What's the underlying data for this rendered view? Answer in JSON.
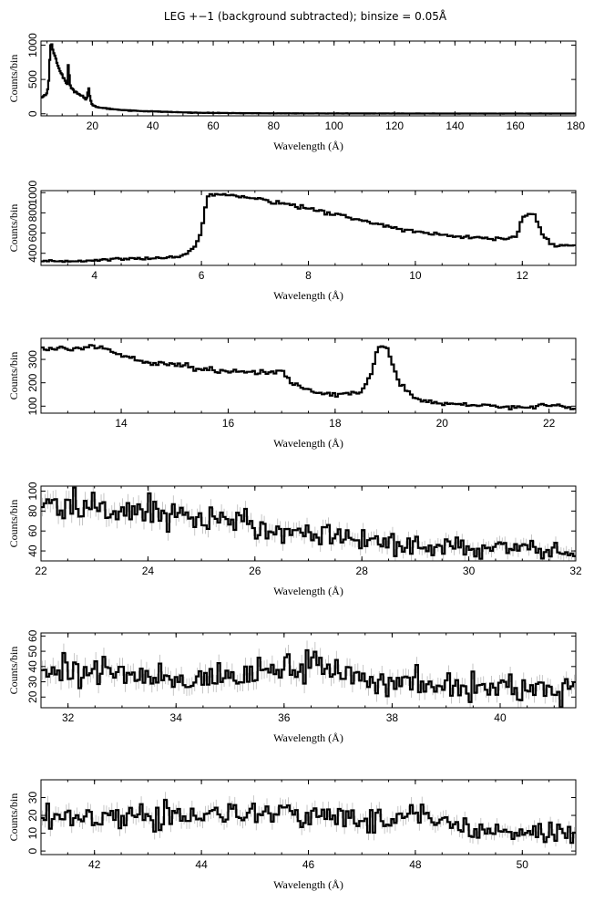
{
  "figure": {
    "title": "LEG +−1 (background subtracted); binsize = 0.05Å",
    "colors": {
      "line": "#000000",
      "error_bars": "#b8b8b8",
      "background": "#ffffff"
    }
  },
  "chart_data": [
    {
      "type": "line",
      "style": "step",
      "xlabel": "Wavelength (Å)",
      "ylabel": "Counts/bin",
      "xlim": [
        3,
        180
      ],
      "ylim": [
        -30,
        1060
      ],
      "xticks": [
        20,
        40,
        60,
        80,
        100,
        120,
        140,
        160,
        180
      ],
      "yticks": [
        0,
        500,
        1000
      ],
      "grid": false,
      "error_bars": false,
      "points": [
        [
          3,
          230
        ],
        [
          4.5,
          280
        ],
        [
          5,
          300
        ],
        [
          5.6,
          500
        ],
        [
          6,
          880
        ],
        [
          6.2,
          990
        ],
        [
          6.5,
          1010
        ],
        [
          7,
          920
        ],
        [
          8,
          790
        ],
        [
          9,
          660
        ],
        [
          10,
          560
        ],
        [
          11,
          480
        ],
        [
          11.8,
          420
        ],
        [
          12.1,
          790
        ],
        [
          12.5,
          420
        ],
        [
          14,
          330
        ],
        [
          16,
          280
        ],
        [
          17,
          250
        ],
        [
          18,
          200
        ],
        [
          18.8,
          380
        ],
        [
          19.3,
          210
        ],
        [
          20,
          120
        ],
        [
          22,
          95
        ],
        [
          25,
          75
        ],
        [
          30,
          55
        ],
        [
          35,
          42
        ],
        [
          40,
          34
        ],
        [
          45,
          27
        ],
        [
          50,
          20
        ],
        [
          55,
          15
        ],
        [
          60,
          12
        ],
        [
          70,
          8
        ],
        [
          80,
          6
        ],
        [
          100,
          5
        ],
        [
          120,
          4
        ],
        [
          140,
          3
        ],
        [
          160,
          3
        ],
        [
          180,
          3
        ]
      ]
    },
    {
      "type": "line",
      "style": "step",
      "xlabel": "Wavelength (Å)",
      "ylabel": "Counts/bin",
      "xlim": [
        3,
        13
      ],
      "ylim": [
        280,
        1020
      ],
      "xticks": [
        4,
        6,
        8,
        10,
        12
      ],
      "yticks": [
        400,
        600,
        800,
        1000
      ],
      "grid": false,
      "error_bars": false,
      "points": [
        [
          3,
          315
        ],
        [
          4,
          330
        ],
        [
          4.5,
          345
        ],
        [
          5,
          350
        ],
        [
          5.5,
          360
        ],
        [
          5.7,
          390
        ],
        [
          5.9,
          480
        ],
        [
          6.0,
          620
        ],
        [
          6.1,
          960
        ],
        [
          6.3,
          975
        ],
        [
          6.5,
          1000
        ],
        [
          7,
          940
        ],
        [
          7.5,
          900
        ],
        [
          8,
          840
        ],
        [
          8.5,
          790
        ],
        [
          9,
          720
        ],
        [
          9.5,
          670
        ],
        [
          10,
          610
        ],
        [
          10.5,
          580
        ],
        [
          11,
          555
        ],
        [
          11.5,
          540
        ],
        [
          11.9,
          560
        ],
        [
          12.0,
          760
        ],
        [
          12.2,
          800
        ],
        [
          12.4,
          560
        ],
        [
          12.6,
          480
        ],
        [
          13,
          470
        ]
      ]
    },
    {
      "type": "line",
      "style": "step",
      "xlabel": "Wavelength (Å)",
      "ylabel": "Counts/bin",
      "xlim": [
        12.5,
        22.5
      ],
      "ylim": [
        70,
        390
      ],
      "xticks": [
        14,
        16,
        18,
        20,
        22
      ],
      "yticks": [
        100,
        200,
        300
      ],
      "grid": false,
      "error_bars": false,
      "points": [
        [
          12.5,
          350
        ],
        [
          13,
          340
        ],
        [
          13.5,
          360
        ],
        [
          14,
          320
        ],
        [
          14.5,
          290
        ],
        [
          15,
          280
        ],
        [
          15.5,
          260
        ],
        [
          16,
          250
        ],
        [
          16.5,
          240
        ],
        [
          17,
          250
        ],
        [
          17.2,
          200
        ],
        [
          17.6,
          160
        ],
        [
          18,
          150
        ],
        [
          18.5,
          160
        ],
        [
          18.7,
          250
        ],
        [
          18.8,
          370
        ],
        [
          19.0,
          330
        ],
        [
          19.2,
          200
        ],
        [
          19.5,
          130
        ],
        [
          20,
          110
        ],
        [
          20.5,
          105
        ],
        [
          21,
          100
        ],
        [
          21.5,
          95
        ],
        [
          22,
          105
        ],
        [
          22.5,
          90
        ]
      ]
    },
    {
      "type": "line",
      "style": "step",
      "xlabel": "Wavelength (Å)",
      "ylabel": "Counts/bin",
      "xlim": [
        22,
        32
      ],
      "ylim": [
        30,
        105
      ],
      "xticks": [
        22,
        24,
        26,
        28,
        30,
        32
      ],
      "yticks": [
        40,
        60,
        80,
        100
      ],
      "grid": false,
      "error_bars": true,
      "points": [
        [
          22,
          88
        ],
        [
          23,
          82
        ],
        [
          24,
          80
        ],
        [
          24.5,
          78
        ],
        [
          25,
          73
        ],
        [
          25.5,
          68
        ],
        [
          26,
          65
        ],
        [
          26.5,
          62
        ],
        [
          27,
          58
        ],
        [
          27.5,
          55
        ],
        [
          28,
          52
        ],
        [
          28.5,
          48
        ],
        [
          29,
          46
        ],
        [
          29.5,
          45
        ],
        [
          30,
          43
        ],
        [
          30.5,
          42
        ],
        [
          31,
          41
        ],
        [
          31.5,
          40
        ],
        [
          32,
          38
        ]
      ]
    },
    {
      "type": "line",
      "style": "step",
      "xlabel": "Wavelength (Å)",
      "ylabel": "Counts/bin",
      "xlim": [
        31.5,
        41.4
      ],
      "ylim": [
        13,
        62
      ],
      "xticks": [
        32,
        34,
        36,
        38,
        40
      ],
      "yticks": [
        20,
        30,
        40,
        50,
        60
      ],
      "grid": false,
      "error_bars": true,
      "points": [
        [
          31.5,
          40
        ],
        [
          32,
          38
        ],
        [
          33,
          35
        ],
        [
          34,
          33
        ],
        [
          35,
          32
        ],
        [
          36,
          38
        ],
        [
          36.7,
          42
        ],
        [
          37,
          34
        ],
        [
          38,
          30
        ],
        [
          39,
          27
        ],
        [
          40,
          26
        ],
        [
          41,
          25
        ],
        [
          41.4,
          24
        ]
      ]
    },
    {
      "type": "line",
      "style": "step",
      "xlabel": "Wavelength (Å)",
      "ylabel": "Counts/bin",
      "xlim": [
        41,
        51
      ],
      "ylim": [
        -2,
        40
      ],
      "xticks": [
        42,
        44,
        46,
        48,
        50
      ],
      "yticks": [
        0,
        10,
        20,
        30
      ],
      "grid": false,
      "error_bars": true,
      "points": [
        [
          41,
          18
        ],
        [
          42,
          19
        ],
        [
          43,
          20
        ],
        [
          44,
          20
        ],
        [
          45,
          21
        ],
        [
          46,
          20
        ],
        [
          47,
          18
        ],
        [
          48,
          20
        ],
        [
          48.5,
          18
        ],
        [
          49,
          14
        ],
        [
          50,
          11
        ],
        [
          51,
          10
        ]
      ]
    }
  ]
}
